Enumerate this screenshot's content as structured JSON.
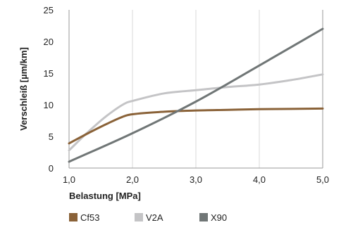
{
  "chart_data": {
    "type": "line",
    "xlabel": "Belastung [MPa]",
    "ylabel": "Verschleiß [µm/km]",
    "xlim": [
      1.0,
      5.0
    ],
    "ylim": [
      0,
      25
    ],
    "x_ticks": [
      1.0,
      2.0,
      3.0,
      4.0,
      5.0
    ],
    "x_tick_labels": [
      "1,0",
      "2,0",
      "3,0",
      "4,0",
      "5,0"
    ],
    "y_ticks": [
      0,
      5,
      10,
      15,
      20,
      25
    ],
    "y_tick_labels": [
      "0",
      "5",
      "10",
      "15",
      "20",
      "25"
    ],
    "grid": "vertical",
    "legend_position": "bottom",
    "series": [
      {
        "name": "Cf53",
        "color": "#8a6238",
        "x": [
          1.0,
          1.3,
          1.6,
          1.9,
          2.0,
          2.5,
          3.0,
          3.5,
          4.0,
          4.5,
          5.0
        ],
        "y": [
          3.9,
          5.5,
          7.0,
          8.3,
          8.5,
          8.9,
          9.1,
          9.2,
          9.3,
          9.35,
          9.4
        ]
      },
      {
        "name": "V2A",
        "color": "#c4c4c6",
        "x": [
          1.0,
          1.3,
          1.6,
          1.9,
          2.0,
          2.5,
          3.0,
          3.5,
          4.0,
          4.5,
          5.0
        ],
        "y": [
          2.8,
          5.7,
          8.3,
          10.3,
          10.6,
          11.8,
          12.3,
          12.8,
          13.2,
          13.9,
          14.8
        ]
      },
      {
        "name": "X90",
        "color": "#707676",
        "x": [
          1.0,
          2.0,
          3.0,
          4.0,
          5.0
        ],
        "y": [
          1.0,
          5.5,
          10.5,
          16.2,
          22.0
        ]
      }
    ]
  }
}
